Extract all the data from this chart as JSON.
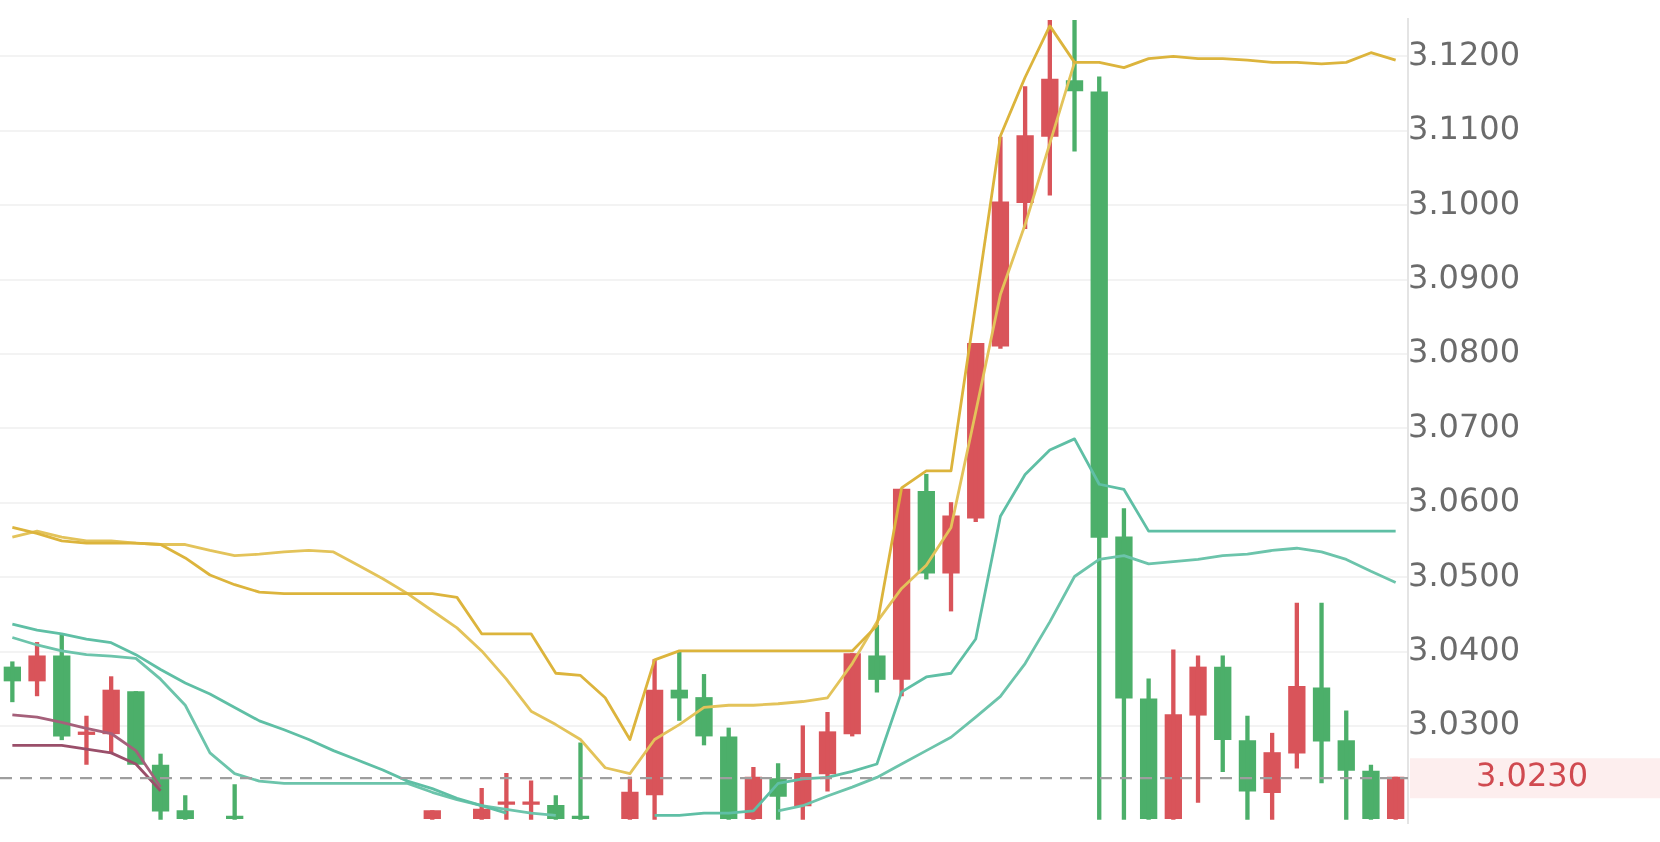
{
  "chart_data": {
    "type": "candlestick",
    "categories": [
      null,
      null,
      null,
      null,
      null,
      null,
      null,
      null,
      null,
      null,
      null,
      null,
      null,
      null,
      null,
      null,
      null,
      null,
      null,
      null,
      null,
      null,
      null,
      null,
      null,
      null,
      null,
      null,
      null,
      null,
      null,
      null,
      null,
      null,
      null,
      null,
      null,
      null,
      null,
      null,
      null,
      null,
      null,
      null,
      null,
      null,
      null,
      null,
      null,
      null,
      null,
      null,
      null,
      null,
      null,
      null,
      null
    ],
    "ohlc": [
      [
        3.0379,
        3.0386,
        3.0333,
        3.0361
      ],
      [
        3.0361,
        3.0412,
        3.0341,
        3.0394
      ],
      [
        3.0394,
        3.0422,
        3.0282,
        3.0287
      ],
      [
        3.029,
        3.0313,
        3.0249,
        3.0289
      ],
      [
        3.029,
        3.0366,
        3.0264,
        3.0348
      ],
      [
        3.0346,
        3.0346,
        3.0249,
        3.0249
      ],
      [
        3.0247,
        3.0262,
        3.0175,
        3.0186
      ],
      [
        3.0186,
        3.0206,
        3.0175,
        3.0176
      ],
      null,
      [
        3.0178,
        3.0221,
        3.0175,
        3.0176
      ],
      null,
      null,
      null,
      null,
      null,
      null,
      null,
      [
        3.0176,
        3.0186,
        3.0175,
        3.0186
      ],
      null,
      [
        3.0176,
        3.0216,
        3.0175,
        3.0188
      ],
      [
        3.0196,
        3.0236,
        3.0175,
        3.0195
      ],
      [
        3.0196,
        3.0226,
        3.0175,
        3.0195
      ],
      [
        3.0193,
        3.0206,
        3.0175,
        3.0176
      ],
      [
        3.0177,
        3.0277,
        3.0175,
        3.0176
      ],
      null,
      [
        3.0176,
        3.0231,
        3.0175,
        3.0211
      ],
      [
        3.0208,
        3.0389,
        3.0175,
        3.0348
      ],
      [
        3.0348,
        3.0399,
        3.0308,
        3.0338
      ],
      [
        3.0338,
        3.0369,
        3.0275,
        3.0287
      ],
      [
        3.0285,
        3.0297,
        3.0175,
        3.0176
      ],
      [
        3.0176,
        3.0244,
        3.0175,
        3.0231
      ],
      [
        3.0229,
        3.0249,
        3.0175,
        3.0206
      ],
      [
        3.0193,
        3.03,
        3.0175,
        3.0236
      ],
      [
        3.0236,
        3.0318,
        3.0213,
        3.0292
      ],
      [
        3.029,
        3.0397,
        3.0287,
        3.0397
      ],
      [
        3.0394,
        3.0435,
        3.0346,
        3.0363
      ],
      [
        3.0363,
        3.0618,
        3.0341,
        3.0618
      ],
      [
        3.0615,
        3.0638,
        3.0498,
        3.0506
      ],
      [
        3.0506,
        3.06,
        3.0455,
        3.0582
      ],
      [
        3.058,
        3.0814,
        3.0575,
        3.0814
      ],
      [
        3.0811,
        3.1091,
        3.0808,
        3.1004
      ],
      [
        3.1004,
        3.1159,
        3.0969,
        3.1093
      ],
      [
        3.1093,
        3.1248,
        3.1014,
        3.1169
      ],
      [
        3.1167,
        3.1248,
        3.1073,
        3.1154
      ],
      [
        3.1152,
        3.1172,
        3.0175,
        3.0554
      ],
      [
        3.0554,
        3.0592,
        3.0175,
        3.0338
      ],
      [
        3.0336,
        3.0363,
        3.0175,
        3.0176
      ],
      [
        3.0176,
        3.0402,
        3.0175,
        3.0315
      ],
      [
        3.0315,
        3.0394,
        3.0198,
        3.0379
      ],
      [
        3.0379,
        3.0394,
        3.0239,
        3.0282
      ],
      [
        3.028,
        3.0313,
        3.0175,
        3.0213
      ],
      [
        3.0211,
        3.029,
        3.0175,
        3.0264
      ],
      [
        3.0264,
        3.0465,
        3.0244,
        3.0353
      ],
      [
        3.0351,
        3.0465,
        3.0224,
        3.028
      ],
      [
        3.028,
        3.032,
        3.0175,
        3.0241
      ],
      [
        3.0239,
        3.0247,
        3.0175,
        3.0176
      ],
      [
        3.0176,
        3.0231,
        3.0175,
        3.0231
      ]
    ],
    "colors": [
      "#4caf6a",
      "#d9545a",
      "#4caf6a",
      "#d9545a",
      "#d9545a",
      "#4caf6a",
      "#4caf6a",
      "#4caf6a",
      null,
      "#4caf6a",
      null,
      null,
      null,
      null,
      null,
      null,
      null,
      "#d9545a",
      null,
      "#d9545a",
      "#d9545a",
      "#d9545a",
      "#4caf6a",
      "#4caf6a",
      null,
      "#d9545a",
      "#d9545a",
      "#4caf6a",
      "#4caf6a",
      "#4caf6a",
      "#d9545a",
      "#4caf6a",
      "#d9545a",
      "#d9545a",
      "#d9545a",
      "#4caf6a",
      "#d9545a",
      "#4caf6a",
      "#d9545a",
      "#d9545a",
      "#d9545a",
      "#d9545a",
      "#d9545a",
      "#4caf6a",
      "#4caf6a",
      "#4caf6a",
      "#4caf6a",
      "#d9545a",
      "#d9545a",
      "#4caf6a",
      "#4caf6a",
      "#d9545a",
      "#d9545a",
      "#4caf6a",
      "#4caf6a",
      "#4caf6a",
      "#d9545a"
    ],
    "series": [
      {
        "type": "line",
        "color": "#dcb43c",
        "values": [
          3.0567,
          3.0559,
          3.0549,
          3.0546,
          3.0546,
          3.0546,
          3.0544,
          3.0526,
          3.0503,
          3.049,
          3.048,
          3.0478,
          3.0478,
          3.0478,
          3.0478,
          3.0478,
          3.0478,
          3.0478,
          3.0473,
          3.0424,
          3.0424,
          3.0424,
          3.0371,
          3.0368,
          3.0338,
          3.0282,
          3.0389,
          3.0401,
          3.0401,
          3.0401,
          3.0401,
          3.0401,
          3.0401,
          3.0401,
          3.0401,
          3.0435,
          3.062,
          3.0643,
          3.0643,
          3.0867,
          3.1093,
          3.1172,
          3.1241,
          3.1192,
          3.1192,
          3.1185,
          3.1197,
          3.12,
          3.1197,
          3.1197,
          3.1195,
          3.1192,
          3.1192,
          3.119,
          3.1192,
          3.1205,
          3.1195
        ]
      },
      {
        "type": "line",
        "color": "#e3c35a",
        "values": [
          3.0554,
          3.0562,
          3.0554,
          3.0549,
          3.0549,
          3.0546,
          3.0544,
          3.0544,
          3.0536,
          3.0529,
          3.0531,
          3.0534,
          3.0536,
          3.0534,
          3.0516,
          3.0498,
          3.0478,
          3.0455,
          3.0432,
          3.0401,
          3.0363,
          3.032,
          3.0302,
          3.0282,
          3.0244,
          3.0236,
          3.0282,
          3.0302,
          3.0325,
          3.0328,
          3.0328,
          3.033,
          3.0333,
          3.0338,
          3.0384,
          3.044,
          3.0485,
          3.0516,
          3.0567,
          3.0722,
          3.088,
          3.0974,
          3.1083,
          3.1192,
          null,
          null,
          null,
          null,
          null,
          null,
          null,
          null,
          null,
          null,
          null,
          null,
          null
        ]
      },
      {
        "type": "line",
        "color": "#5fbfa5",
        "values": [
          3.0437,
          3.0429,
          3.0424,
          3.0417,
          3.0412,
          3.0396,
          3.0376,
          3.0358,
          3.0343,
          3.0325,
          3.0307,
          3.0295,
          3.0282,
          3.0267,
          3.0254,
          3.0241,
          3.0226,
          3.0216,
          3.0203,
          3.0193,
          3.0183,
          null,
          null,
          null,
          null,
          null,
          3.018,
          3.018,
          3.0183,
          3.0183,
          3.0186,
          3.0223,
          3.0229,
          3.0231,
          3.0239,
          3.0249,
          3.0346,
          3.0366,
          3.0371,
          3.0417,
          3.0582,
          3.0638,
          3.0671,
          3.0686,
          3.0625,
          3.0618,
          3.0562,
          3.0562,
          3.0562,
          3.0562,
          3.0562,
          3.0562,
          3.0562,
          3.0562,
          3.0562,
          3.0562,
          3.0562
        ]
      },
      {
        "type": "line",
        "color": "#6cc4ab",
        "values": [
          3.0419,
          3.0409,
          3.0401,
          3.0396,
          3.0394,
          3.0391,
          3.0363,
          3.0328,
          3.0264,
          3.0236,
          3.0226,
          3.0223,
          3.0223,
          3.0223,
          3.0223,
          3.0223,
          3.0223,
          3.0211,
          3.0201,
          3.0193,
          3.0188,
          3.0183,
          3.018,
          null,
          null,
          null,
          null,
          null,
          null,
          null,
          null,
          3.0186,
          3.0193,
          3.0206,
          3.0218,
          3.0231,
          3.0249,
          3.0267,
          3.0285,
          3.0312,
          3.034,
          3.0384,
          3.044,
          3.0501,
          3.0524,
          3.0529,
          3.0518,
          3.0521,
          3.0524,
          3.0529,
          3.0531,
          3.0536,
          3.0539,
          3.0534,
          3.0524,
          3.0508,
          3.0493
        ]
      },
      {
        "type": "line",
        "color": "#a5607a",
        "values": [
          3.0315,
          3.0312,
          3.0305,
          3.0297,
          3.029,
          3.0267,
          3.0218,
          null,
          null,
          null,
          null,
          null,
          null,
          null,
          null,
          null,
          null,
          null,
          null,
          null,
          null,
          null,
          null,
          null,
          null,
          null,
          null,
          null,
          null,
          null,
          null,
          null,
          null,
          null,
          null,
          null,
          null,
          null,
          null,
          null,
          null,
          null,
          null,
          null,
          null,
          null,
          null,
          null,
          null,
          null,
          null,
          null,
          null,
          null,
          null,
          null,
          null
        ]
      },
      {
        "type": "line",
        "color": "#9a4f6a",
        "values": [
          3.0274,
          3.0274,
          3.0274,
          3.0269,
          3.0264,
          3.0249,
          3.0213,
          null,
          null,
          null,
          null,
          null,
          null,
          null,
          null,
          null,
          null,
          null,
          null,
          null,
          null,
          null,
          null,
          null,
          null,
          null,
          null,
          null,
          null,
          null,
          null,
          null,
          null,
          null,
          null,
          null,
          null,
          null,
          null,
          null,
          null,
          null,
          null,
          null,
          null,
          null,
          null,
          null,
          null,
          null,
          null,
          null,
          null,
          null,
          null,
          null,
          null
        ]
      }
    ],
    "ylim": [
      3.017,
      3.125
    ],
    "yticks": [
      {
        "value": 3.03,
        "label": "3.0300"
      },
      {
        "value": 3.04,
        "label": "3.0400"
      },
      {
        "value": 3.05,
        "label": "3.0500"
      },
      {
        "value": 3.06,
        "label": "3.0600"
      },
      {
        "value": 3.07,
        "label": "3.0700"
      },
      {
        "value": 3.08,
        "label": "3.0800"
      },
      {
        "value": 3.09,
        "label": "3.0900"
      },
      {
        "value": 3.1,
        "label": "3.1000"
      },
      {
        "value": 3.11,
        "label": "3.1100"
      },
      {
        "value": 3.12,
        "label": "3.1200"
      }
    ],
    "grid": "y",
    "tick_labels": "y",
    "ref_lines": [
      {
        "axis": "y",
        "value": 3.023,
        "label": "3.0230",
        "color": "#9e9e9e",
        "line_style": "dashed"
      }
    ]
  }
}
